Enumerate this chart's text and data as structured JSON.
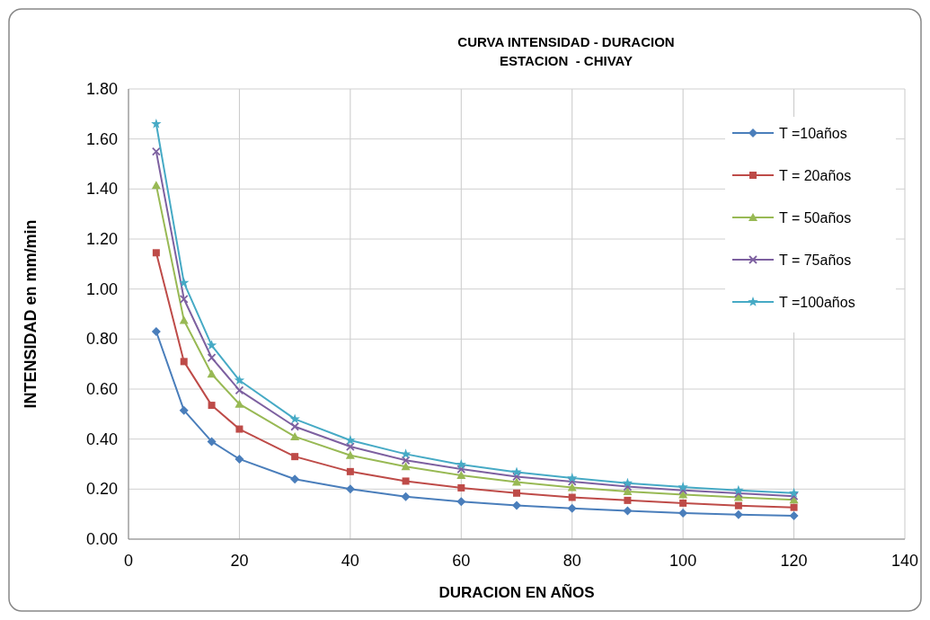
{
  "chart_data": {
    "type": "line",
    "title": "CURVA INTENSIDAD - DURACION",
    "subtitle": "ESTACION  - CHIVAY",
    "xlabel": "DURACION EN AÑOS",
    "ylabel": "INTENSIDAD  en mm/min",
    "x": [
      5,
      10,
      15,
      20,
      30,
      40,
      50,
      60,
      70,
      80,
      90,
      100,
      110,
      120
    ],
    "xlim": [
      0,
      140
    ],
    "xticks": [
      0,
      20,
      40,
      60,
      80,
      100,
      120,
      140
    ],
    "ylim": [
      0,
      1.8
    ],
    "yticks": [
      {
        "value": 0,
        "label": "0.00"
      },
      {
        "value": 0.2,
        "label": "0.20"
      },
      {
        "value": 0.4,
        "label": "0.40"
      },
      {
        "value": 0.6,
        "label": "0.60"
      },
      {
        "value": 0.8,
        "label": "0.80"
      },
      {
        "value": 1.0,
        "label": "1.00"
      },
      {
        "value": 1.2,
        "label": "1.20"
      },
      {
        "value": 1.4,
        "label": "1.40"
      },
      {
        "value": 1.6,
        "label": "1.60"
      },
      {
        "value": 1.8,
        "label": "1.80"
      }
    ],
    "grid": true,
    "legend": "top right",
    "line_style": "solid",
    "series": [
      {
        "name": "T =10años",
        "color": "#4a7ebb",
        "marker": "diamond",
        "values": [
          0.83,
          0.515,
          0.39,
          0.32,
          0.24,
          0.2,
          0.17,
          0.15,
          0.135,
          0.123,
          0.113,
          0.104,
          0.098,
          0.093
        ]
      },
      {
        "name": "T = 20años",
        "color": "#be4b48",
        "marker": "square",
        "values": [
          1.145,
          0.71,
          0.535,
          0.44,
          0.33,
          0.27,
          0.232,
          0.205,
          0.184,
          0.167,
          0.155,
          0.144,
          0.134,
          0.127
        ]
      },
      {
        "name": "T = 50años",
        "color": "#98b954",
        "marker": "triangle",
        "values": [
          1.415,
          0.875,
          0.66,
          0.54,
          0.41,
          0.335,
          0.29,
          0.255,
          0.228,
          0.207,
          0.19,
          0.178,
          0.167,
          0.157
        ]
      },
      {
        "name": "T = 75años",
        "color": "#7d60a0",
        "marker": "cross",
        "values": [
          1.55,
          0.96,
          0.725,
          0.595,
          0.45,
          0.37,
          0.315,
          0.28,
          0.25,
          0.23,
          0.21,
          0.195,
          0.183,
          0.172
        ]
      },
      {
        "name": "T =100años",
        "color": "#46aac5",
        "marker": "star",
        "values": [
          1.66,
          1.025,
          0.775,
          0.635,
          0.48,
          0.395,
          0.34,
          0.298,
          0.268,
          0.244,
          0.224,
          0.208,
          0.195,
          0.184
        ]
      }
    ]
  }
}
